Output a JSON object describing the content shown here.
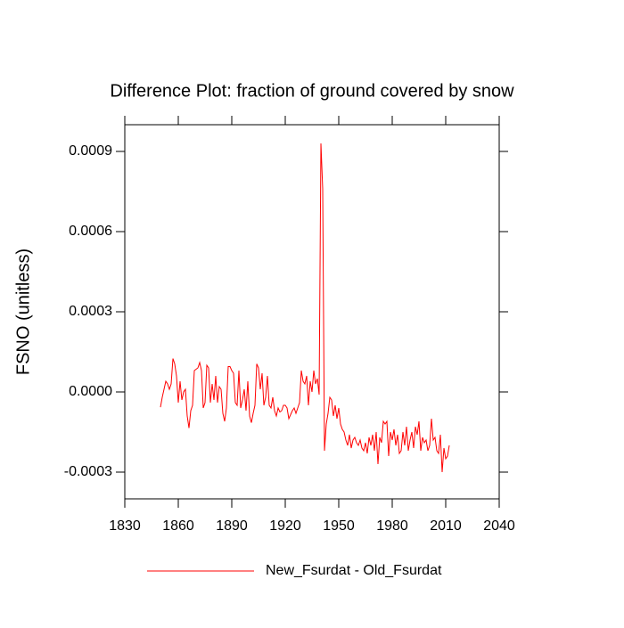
{
  "chart_data": {
    "type": "line",
    "title": "Difference Plot: fraction of ground covered by snow",
    "y_label": "FSNO  (unitless)",
    "x": [
      1850,
      1851,
      1852,
      1853,
      1854,
      1855,
      1856,
      1857,
      1858,
      1859,
      1860,
      1861,
      1862,
      1863,
      1864,
      1865,
      1866,
      1867,
      1868,
      1869,
      1870,
      1871,
      1872,
      1873,
      1874,
      1875,
      1876,
      1877,
      1878,
      1879,
      1880,
      1881,
      1882,
      1883,
      1884,
      1885,
      1886,
      1887,
      1888,
      1889,
      1890,
      1891,
      1892,
      1893,
      1894,
      1895,
      1896,
      1897,
      1898,
      1899,
      1900,
      1901,
      1902,
      1903,
      1904,
      1905,
      1906,
      1907,
      1908,
      1909,
      1910,
      1911,
      1912,
      1913,
      1914,
      1915,
      1916,
      1917,
      1918,
      1919,
      1920,
      1921,
      1922,
      1923,
      1924,
      1925,
      1926,
      1927,
      1928,
      1929,
      1930,
      1931,
      1932,
      1933,
      1934,
      1935,
      1936,
      1937,
      1938,
      1939,
      1940,
      1941,
      1942,
      1943,
      1944,
      1945,
      1946,
      1947,
      1948,
      1949,
      1950,
      1951,
      1952,
      1953,
      1954,
      1955,
      1956,
      1957,
      1958,
      1959,
      1960,
      1961,
      1962,
      1963,
      1964,
      1965,
      1966,
      1967,
      1968,
      1969,
      1970,
      1971,
      1972,
      1973,
      1974,
      1975,
      1976,
      1977,
      1978,
      1979,
      1980,
      1981,
      1982,
      1983,
      1984,
      1985,
      1986,
      1987,
      1988,
      1989,
      1990,
      1991,
      1992,
      1993,
      1994,
      1995,
      1996,
      1997,
      1998,
      1999,
      2000,
      2001,
      2002,
      2003,
      2004,
      2005,
      2006,
      2007,
      2008,
      2009,
      2010,
      2011,
      2012
    ],
    "series": [
      {
        "name": "New_Fsurdat - Old_Fsurdat",
        "color": "#ff0000",
        "values": [
          -5.7e-05,
          -2e-05,
          1e-05,
          4e-05,
          3e-05,
          1e-05,
          3e-05,
          0.000125,
          0.000105,
          6e-05,
          -4e-05,
          4e-05,
          -3e-05,
          0,
          1e-05,
          -9e-05,
          -0.000135,
          -7e-05,
          -5e-05,
          8e-05,
          8.5e-05,
          9e-05,
          0.00011,
          8e-05,
          -6e-05,
          -4e-05,
          0.0001,
          9e-05,
          -4e-05,
          3e-05,
          -3e-05,
          6e-05,
          -4e-05,
          2e-05,
          1e-05,
          -8e-05,
          -0.00011,
          -6e-05,
          9.5e-05,
          9.5e-05,
          8e-05,
          7e-05,
          -4e-05,
          -5e-05,
          8e-05,
          -6e-05,
          -3e-05,
          1e-05,
          -7e-05,
          4e-05,
          -9e-05,
          -0.000115,
          -8e-05,
          -5e-05,
          0.000105,
          9e-05,
          1e-05,
          7e-05,
          -5e-05,
          -2e-05,
          6e-05,
          -5e-05,
          -6e-05,
          -2e-05,
          -7e-05,
          -9e-05,
          -6e-05,
          -7.5e-05,
          -7e-05,
          -5e-05,
          -5e-05,
          -6e-05,
          -0.0001,
          -8.5e-05,
          -7e-05,
          -6e-05,
          -8e-05,
          -6e-05,
          -4e-05,
          8e-05,
          4e-05,
          3e-05,
          6e-05,
          -5e-05,
          4e-05,
          0,
          8e-05,
          3e-05,
          5e-05,
          -1e-05,
          0.00093,
          0.00076,
          -0.00022,
          -0.00012,
          -8e-05,
          -2e-05,
          -3e-05,
          -9e-05,
          -5e-05,
          -0.0001,
          -6e-05,
          -0.00012,
          -0.00014,
          -0.00015,
          -0.00018,
          -0.0002,
          -0.00016,
          -0.00021,
          -0.00018,
          -0.00017,
          -0.00019,
          -0.0002,
          -0.00018,
          -0.00021,
          -0.00022,
          -0.00019,
          -0.00023,
          -0.00017,
          -0.0002,
          -0.00016,
          -0.00022,
          -0.00015,
          -0.00027,
          -0.00017,
          -0.00019,
          -0.00011,
          -0.00012,
          -0.00011,
          -0.00024,
          -0.00015,
          -0.00018,
          -0.00014,
          -0.0002,
          -0.00016,
          -0.00023,
          -0.00022,
          -0.00015,
          -0.0002,
          -0.00013,
          -0.00022,
          -0.00018,
          -0.00015,
          -0.00021,
          -0.00013,
          -0.00016,
          -0.00011,
          -0.00022,
          -0.00017,
          -0.00019,
          -0.00018,
          -0.00022,
          -0.0002,
          -0.0001,
          -0.00018,
          -0.00017,
          -0.00022,
          -0.00023,
          -0.00016,
          -0.0003,
          -0.00021,
          -0.00025,
          -0.00024,
          -0.0002
        ]
      }
    ],
    "xlim": [
      1830,
      2040
    ],
    "xticks": [
      1830,
      1860,
      1890,
      1920,
      1950,
      1980,
      2010,
      2040
    ],
    "ylim": [
      -0.0004,
      0.001
    ],
    "yticks": [
      -0.0003,
      {
        "value": 0,
        "label": "0.0000"
      },
      0.0003,
      0.0006,
      0.0009
    ]
  }
}
